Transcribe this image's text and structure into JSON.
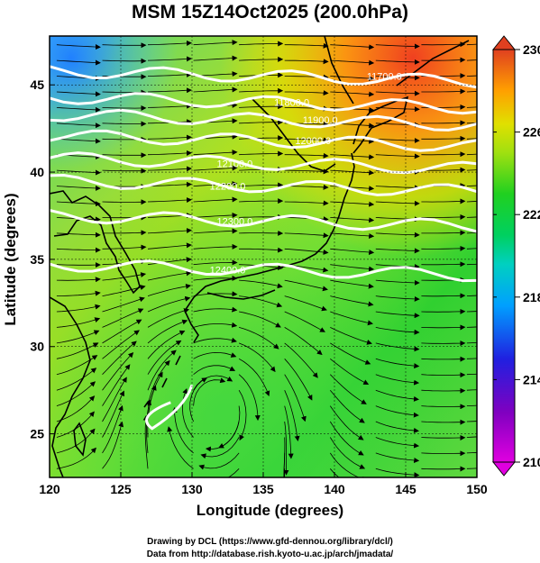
{
  "title": "MSM 15Z14Oct2025 (200.0hPa)",
  "x_axis": {
    "label": "Longitude (degrees)",
    "ticks": [
      "120",
      "125",
      "130",
      "135",
      "140",
      "145",
      "150"
    ]
  },
  "y_axis": {
    "label": "Latitude  (degrees)",
    "ticks": [
      "25",
      "30",
      "35",
      "40",
      "45"
    ]
  },
  "colorbar": {
    "ticks": [
      "230",
      "226",
      "222",
      "218",
      "214",
      "210"
    ],
    "range": [
      210,
      230
    ],
    "colors": [
      "#e000e0",
      "#8000c0",
      "#2020e0",
      "#00a0ff",
      "#00d0c0",
      "#00d060",
      "#20d020",
      "#a0e010",
      "#e0e000",
      "#ffa000",
      "#f06020",
      "#e04020"
    ]
  },
  "contour_labels": [
    "11700.0",
    "11800.0",
    "11900.0",
    "12000.0",
    "12100.0",
    "12200.0",
    "12300.0",
    "12400.0"
  ],
  "credits": [
    "Drawing by DCL (https://www.gfd-dennou.org/library/dcl/)",
    "Data from http://database.rish.kyoto-u.ac.jp/arch/jmadata/"
  ]
}
